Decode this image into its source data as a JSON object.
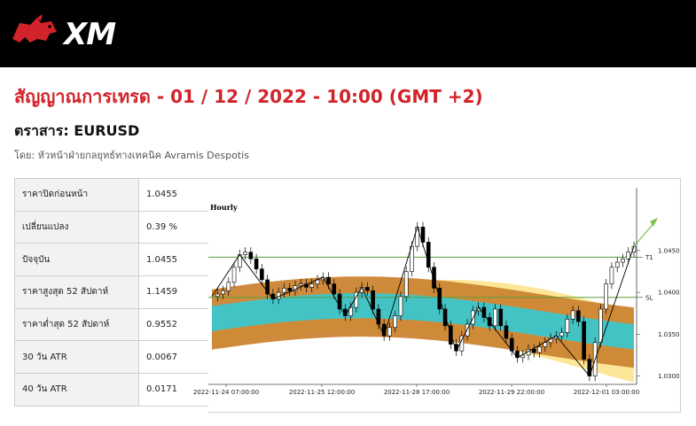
{
  "brand": {
    "logo_text": "XM"
  },
  "headline": "สัญญาณการเทรด - 01 / 12 / 2022 - 10:00 (GMT +2)",
  "instrument": "ตราสาร: EURUSD",
  "byline": "โดย: หัวหน้าฝ่ายกลยุทธ์ทางเทคนิค Avramis Despotis",
  "stats": [
    {
      "label": "ราคาปิดก่อนหน้า",
      "value": "1.0455"
    },
    {
      "label": "เปลี่ยนแปลง",
      "value": "0.39 %"
    },
    {
      "label": "ปัจจุบัน",
      "value": "1.0455"
    },
    {
      "label": "ราคาสูงสุด 52 สัปดาห์",
      "value": "1.1459"
    },
    {
      "label": "ราคาต่ำสุด 52 สัปดาห์",
      "value": "0.9552"
    },
    {
      "label": "30 วัน ATR",
      "value": "0.0067"
    },
    {
      "label": "40 วัน ATR",
      "value": "0.0171"
    }
  ],
  "chart_data": {
    "type": "line",
    "timeframe": "Hourly",
    "x_tick_labels": [
      "2022-11-24 07:00:00",
      "2022-11-25 12:00:00",
      "2022-11-28 17:00:00",
      "2022-11-29 22:00:00",
      "2022-12-01 03:00:00"
    ],
    "y_tick_labels": [
      "1.0450",
      "1.0400",
      "1.0350",
      "1.0300"
    ],
    "ylim": [
      1.029,
      1.0525
    ],
    "levels": [
      {
        "name": "T1",
        "value": 1.0442,
        "color": "#5a9e3a"
      },
      {
        "name": "SL",
        "value": 1.0394,
        "color": "#5a9e3a"
      }
    ],
    "price_series": [
      1.0395,
      1.0398,
      1.0402,
      1.0412,
      1.043,
      1.0445,
      1.0448,
      1.044,
      1.0428,
      1.0415,
      1.0398,
      1.0392,
      1.04,
      1.0405,
      1.0402,
      1.0408,
      1.041,
      1.0406,
      1.041,
      1.0415,
      1.0418,
      1.041,
      1.0398,
      1.038,
      1.0372,
      1.0382,
      1.04,
      1.0406,
      1.0402,
      1.038,
      1.0362,
      1.0348,
      1.0358,
      1.0372,
      1.0395,
      1.0425,
      1.0455,
      1.0478,
      1.046,
      1.043,
      1.0405,
      1.038,
      1.036,
      1.0338,
      1.033,
      1.0348,
      1.0362,
      1.0378,
      1.0382,
      1.037,
      1.036,
      1.038,
      1.036,
      1.0345,
      1.033,
      1.0322,
      1.0325,
      1.0332,
      1.0328,
      1.0335,
      1.034,
      1.0345,
      1.0348,
      1.0352,
      1.0368,
      1.0378,
      1.0365,
      1.032,
      1.03,
      1.034,
      1.038,
      1.041,
      1.043,
      1.0436,
      1.044,
      1.0448,
      1.0455
    ]
  }
}
